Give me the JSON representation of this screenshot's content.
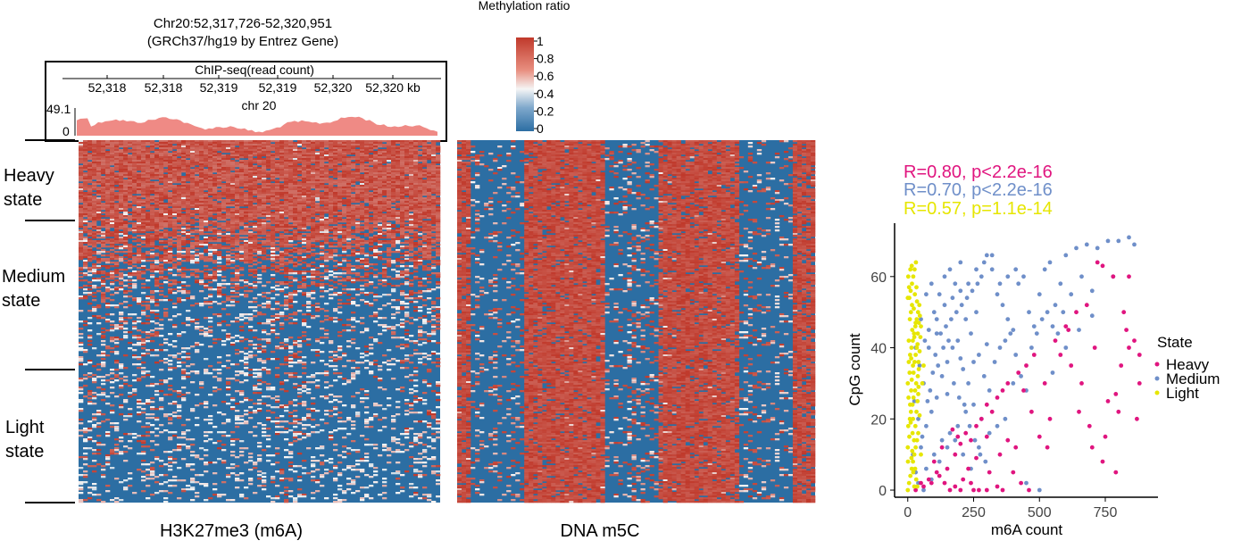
{
  "figure": {
    "locus_line1": "Chr20:52,317,726-52,320,951",
    "locus_line2": "(GRCh37/hg19 by Entrez Gene)",
    "track_title": "ChIP-seq(read count)",
    "track_ticks": [
      "52,318",
      "52,318",
      "52,319",
      "52,319",
      "52,320",
      "52,320 kb"
    ],
    "chrom_label": "chr 20",
    "track_ymax": "49.1",
    "track_ymin": "0",
    "state_labels": [
      {
        "line1": "Heavy",
        "line2": "state"
      },
      {
        "line1": "Medium",
        "line2": "state"
      },
      {
        "line1": "Light",
        "line2": "state"
      }
    ],
    "heatmap1_label": "H3K27me3 (m6A)",
    "heatmap2_label": "DNA m5C",
    "colorbar_title": "Methylation ratio",
    "colorbar_ticks": [
      "1",
      "0.8",
      "0.6",
      "0.4",
      "0.2",
      "0"
    ],
    "colors": {
      "high": "#c0392b",
      "mid": "#f5f5f5",
      "low": "#2c6ea3",
      "track_fill": "#ef8a85",
      "heavy": "#e0157f",
      "medium": "#6f8fc9",
      "light": "#e6e600"
    }
  },
  "chart_data": {
    "type": "scatter",
    "xlabel": "m6A count",
    "ylabel": "CpG count",
    "xlim": [
      -50,
      950
    ],
    "ylim": [
      -2,
      75
    ],
    "xticks": [
      0,
      250,
      500,
      750
    ],
    "yticks": [
      0,
      20,
      40,
      60
    ],
    "legend_title": "State",
    "legend_position": "right",
    "annotations": [
      {
        "text": "R=0.80, p<2.2e-16",
        "series": "Heavy"
      },
      {
        "text": "R=0.70, p<2.2e-16",
        "series": "Medium"
      },
      {
        "text": "R=0.57, p=1.1e-14",
        "series": "Light"
      }
    ],
    "series": [
      {
        "name": "Heavy",
        "color": "#e0157f",
        "points": [
          [
            30,
            0
          ],
          [
            60,
            1
          ],
          [
            90,
            2
          ],
          [
            120,
            4
          ],
          [
            150,
            6
          ],
          [
            180,
            10
          ],
          [
            200,
            13
          ],
          [
            220,
            16
          ],
          [
            240,
            14
          ],
          [
            260,
            18
          ],
          [
            280,
            20
          ],
          [
            300,
            24
          ],
          [
            320,
            22
          ],
          [
            340,
            26
          ],
          [
            360,
            28
          ],
          [
            380,
            30
          ],
          [
            420,
            33
          ],
          [
            450,
            35
          ],
          [
            480,
            38
          ],
          [
            520,
            30
          ],
          [
            560,
            42
          ],
          [
            600,
            46
          ],
          [
            640,
            50
          ],
          [
            680,
            52
          ],
          [
            720,
            64
          ],
          [
            740,
            63
          ],
          [
            780,
            60
          ],
          [
            820,
            50
          ],
          [
            830,
            45
          ],
          [
            840,
            40
          ],
          [
            870,
            20
          ],
          [
            860,
            42
          ],
          [
            880,
            30
          ],
          [
            810,
            35
          ],
          [
            790,
            27
          ],
          [
            760,
            25
          ],
          [
            700,
            12
          ],
          [
            690,
            18
          ],
          [
            740,
            8
          ],
          [
            790,
            5
          ],
          [
            650,
            22
          ],
          [
            620,
            35
          ],
          [
            580,
            38
          ],
          [
            540,
            20
          ],
          [
            500,
            15
          ],
          [
            460,
            0
          ],
          [
            430,
            2
          ],
          [
            400,
            5
          ],
          [
            350,
            10
          ],
          [
            300,
            15
          ],
          [
            260,
            9
          ],
          [
            230,
            6
          ],
          [
            210,
            3
          ],
          [
            180,
            1
          ],
          [
            160,
            0
          ],
          [
            140,
            2
          ],
          [
            110,
            5
          ],
          [
            80,
            3
          ],
          [
            50,
            2
          ],
          [
            100,
            8
          ],
          [
            130,
            12
          ],
          [
            170,
            17
          ],
          [
            190,
            15
          ],
          [
            240,
            2
          ],
          [
            270,
            0
          ],
          [
            310,
            5
          ],
          [
            360,
            0
          ],
          [
            410,
            12
          ],
          [
            470,
            22
          ],
          [
            530,
            12
          ],
          [
            610,
            45
          ],
          [
            660,
            30
          ],
          [
            710,
            40
          ],
          [
            750,
            15
          ],
          [
            800,
            22
          ],
          [
            840,
            60
          ],
          [
            880,
            38
          ],
          [
            200,
            0
          ],
          [
            250,
            0
          ],
          [
            300,
            0
          ],
          [
            340,
            1
          ],
          [
            380,
            14
          ],
          [
            440,
            28
          ]
        ]
      },
      {
        "name": "Medium",
        "color": "#6f8fc9",
        "points": [
          [
            20,
            10
          ],
          [
            40,
            20
          ],
          [
            60,
            30
          ],
          [
            80,
            40
          ],
          [
            100,
            50
          ],
          [
            120,
            55
          ],
          [
            140,
            60
          ],
          [
            160,
            62
          ],
          [
            180,
            58
          ],
          [
            200,
            64
          ],
          [
            220,
            48
          ],
          [
            240,
            44
          ],
          [
            260,
            50
          ],
          [
            280,
            60
          ],
          [
            300,
            66
          ],
          [
            320,
            62
          ],
          [
            340,
            55
          ],
          [
            360,
            52
          ],
          [
            380,
            48
          ],
          [
            400,
            45
          ],
          [
            420,
            58
          ],
          [
            440,
            60
          ],
          [
            460,
            50
          ],
          [
            480,
            46
          ],
          [
            500,
            55
          ],
          [
            520,
            62
          ],
          [
            540,
            64
          ],
          [
            560,
            52
          ],
          [
            580,
            58
          ],
          [
            600,
            66
          ],
          [
            640,
            68
          ],
          [
            680,
            69
          ],
          [
            720,
            68
          ],
          [
            760,
            70
          ],
          [
            800,
            70
          ],
          [
            840,
            71
          ],
          [
            860,
            69
          ],
          [
            620,
            55
          ],
          [
            660,
            60
          ],
          [
            700,
            56
          ],
          [
            30,
            5
          ],
          [
            50,
            12
          ],
          [
            70,
            18
          ],
          [
            90,
            22
          ],
          [
            110,
            26
          ],
          [
            130,
            32
          ],
          [
            150,
            36
          ],
          [
            170,
            40
          ],
          [
            190,
            42
          ],
          [
            210,
            34
          ],
          [
            230,
            30
          ],
          [
            250,
            36
          ],
          [
            270,
            38
          ],
          [
            290,
            32
          ],
          [
            310,
            28
          ],
          [
            330,
            36
          ],
          [
            350,
            40
          ],
          [
            370,
            42
          ],
          [
            390,
            44
          ],
          [
            410,
            38
          ],
          [
            430,
            32
          ],
          [
            450,
            28
          ],
          [
            470,
            40
          ],
          [
            490,
            44
          ],
          [
            510,
            48
          ],
          [
            530,
            50
          ],
          [
            550,
            46
          ],
          [
            570,
            44
          ],
          [
            590,
            50
          ],
          [
            40,
            2
          ],
          [
            70,
            6
          ],
          [
            100,
            10
          ],
          [
            130,
            14
          ],
          [
            160,
            16
          ],
          [
            190,
            18
          ],
          [
            220,
            22
          ],
          [
            250,
            24
          ],
          [
            280,
            20
          ],
          [
            310,
            16
          ],
          [
            340,
            18
          ],
          [
            370,
            20
          ],
          [
            60,
            0
          ],
          [
            90,
            3
          ],
          [
            120,
            8
          ],
          [
            150,
            12
          ],
          [
            180,
            14
          ],
          [
            210,
            10
          ],
          [
            240,
            6
          ],
          [
            270,
            12
          ],
          [
            450,
            2
          ],
          [
            500,
            0
          ],
          [
            80,
            45
          ],
          [
            110,
            48
          ],
          [
            140,
            52
          ],
          [
            170,
            54
          ],
          [
            200,
            56
          ],
          [
            230,
            58
          ],
          [
            260,
            62
          ],
          [
            290,
            64
          ],
          [
            320,
            66
          ],
          [
            350,
            58
          ],
          [
            380,
            60
          ],
          [
            410,
            62
          ],
          [
            25,
            25
          ],
          [
            45,
            35
          ],
          [
            65,
            42
          ],
          [
            85,
            28
          ],
          [
            105,
            38
          ],
          [
            125,
            44
          ],
          [
            145,
            46
          ],
          [
            165,
            48
          ],
          [
            185,
            50
          ],
          [
            205,
            52
          ],
          [
            225,
            54
          ],
          [
            245,
            56
          ],
          [
            265,
            58
          ],
          [
            55,
            15
          ],
          [
            75,
            25
          ],
          [
            95,
            33
          ],
          [
            115,
            35
          ],
          [
            135,
            40
          ],
          [
            155,
            42
          ],
          [
            175,
            30
          ],
          [
            195,
            26
          ],
          [
            215,
            24
          ],
          [
            235,
            18
          ],
          [
            255,
            14
          ],
          [
            275,
            10
          ],
          [
            295,
            8
          ],
          [
            30,
            40
          ],
          [
            50,
            48
          ],
          [
            70,
            55
          ],
          [
            90,
            58
          ],
          [
            110,
            44
          ],
          [
            150,
            27
          ],
          [
            200,
            37
          ],
          [
            300,
            41
          ],
          [
            400,
            30
          ],
          [
            600,
            40
          ],
          [
            700,
            49
          ],
          [
            780,
            60
          ],
          [
            550,
            33
          ],
          [
            650,
            45
          ]
        ]
      },
      {
        "name": "Light",
        "color": "#e6e600",
        "points": [
          [
            0,
            0
          ],
          [
            5,
            2
          ],
          [
            10,
            4
          ],
          [
            15,
            6
          ],
          [
            20,
            8
          ],
          [
            25,
            10
          ],
          [
            30,
            12
          ],
          [
            35,
            14
          ],
          [
            40,
            16
          ],
          [
            2,
            18
          ],
          [
            8,
            20
          ],
          [
            12,
            22
          ],
          [
            18,
            24
          ],
          [
            22,
            26
          ],
          [
            28,
            28
          ],
          [
            32,
            30
          ],
          [
            38,
            32
          ],
          [
            42,
            34
          ],
          [
            4,
            36
          ],
          [
            9,
            38
          ],
          [
            14,
            40
          ],
          [
            19,
            42
          ],
          [
            24,
            44
          ],
          [
            29,
            46
          ],
          [
            34,
            48
          ],
          [
            39,
            50
          ],
          [
            44,
            52
          ],
          [
            6,
            54
          ],
          [
            11,
            56
          ],
          [
            16,
            58
          ],
          [
            21,
            60
          ],
          [
            26,
            62
          ],
          [
            31,
            64
          ],
          [
            0,
            12
          ],
          [
            3,
            26
          ],
          [
            7,
            33
          ],
          [
            13,
            37
          ],
          [
            17,
            45
          ],
          [
            23,
            51
          ],
          [
            27,
            55
          ],
          [
            33,
            57
          ],
          [
            37,
            41
          ],
          [
            41,
            29
          ],
          [
            45,
            39
          ],
          [
            1,
            8
          ],
          [
            6,
            15
          ],
          [
            11,
            19
          ],
          [
            15,
            31
          ],
          [
            20,
            35
          ],
          [
            25,
            43
          ],
          [
            30,
            47
          ],
          [
            35,
            53
          ],
          [
            40,
            27
          ],
          [
            45,
            21
          ],
          [
            50,
            46
          ],
          [
            0,
            30
          ],
          [
            4,
            42
          ],
          [
            8,
            48
          ],
          [
            12,
            50
          ],
          [
            16,
            52
          ],
          [
            20,
            20
          ],
          [
            24,
            14
          ],
          [
            28,
            6
          ],
          [
            32,
            3
          ],
          [
            36,
            1
          ],
          [
            2,
            60
          ],
          [
            10,
            62
          ],
          [
            14,
            9
          ],
          [
            18,
            16
          ],
          [
            22,
            33
          ],
          [
            26,
            36
          ],
          [
            30,
            38
          ],
          [
            34,
            40
          ],
          [
            38,
            44
          ],
          [
            42,
            47
          ],
          [
            46,
            49
          ],
          [
            0,
            54
          ],
          [
            5,
            57
          ],
          [
            9,
            24
          ],
          [
            13,
            28
          ],
          [
            17,
            11
          ],
          [
            21,
            5
          ],
          [
            25,
            1
          ],
          [
            29,
            18
          ],
          [
            33,
            22
          ],
          [
            37,
            25
          ],
          [
            41,
            36
          ],
          [
            15,
            63
          ],
          [
            55,
            30
          ],
          [
            60,
            35
          ],
          [
            50,
            10
          ],
          [
            48,
            43
          ]
        ]
      }
    ]
  }
}
